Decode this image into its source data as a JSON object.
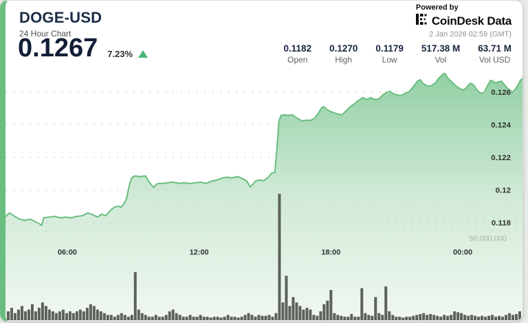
{
  "card": {
    "title": "DOGE-USD",
    "subtitle": "24 Hour Chart",
    "price": "0.1267",
    "change": "7.23%",
    "change_direction": "up"
  },
  "powered_by": {
    "label": "Powered by",
    "brand": "CoinDesk Data",
    "timestamp": "2 Jan 2026 02:59 (GMT)"
  },
  "stats": [
    {
      "value": "0.1182",
      "label": "Open"
    },
    {
      "value": "0.1270",
      "label": "High"
    },
    {
      "value": "0.1179",
      "label": "Low"
    },
    {
      "value": "517.38 M",
      "label": "Vol"
    },
    {
      "value": "63.71 M",
      "label": "Vol USD"
    }
  ],
  "colors": {
    "accent_stripe": "#6abe7f",
    "line": "#68bd7e",
    "area_top": "#8ccd9e",
    "area_mid": "#cfe9d6",
    "area_bottom": "#f1f8f1",
    "volume_bar": "#545a52",
    "up": "#4db378",
    "grid_dot": "#c9cdc9",
    "tick_text": "#2e332e",
    "time_text": "#30343a",
    "volume_axis_text": "#a9b2a9",
    "page_bg": "#e9ebe9",
    "card_bg": "#ffffff"
  },
  "chart_data": {
    "type": "area",
    "title": "DOGE-USD 24 Hour Chart",
    "x_axis": {
      "ticks": [
        {
          "label": "06:00",
          "t": 0.1195
        },
        {
          "label": "12:00",
          "t": 0.3745
        },
        {
          "label": "18:00",
          "t": 0.6295
        },
        {
          "label": "00:00",
          "t": 0.8845
        }
      ]
    },
    "price_axis": {
      "side": "right",
      "range": [
        0.11201,
        0.12739
      ],
      "ticks": [
        {
          "label": "0.126",
          "value": 0.126
        },
        {
          "label": "0.124",
          "value": 0.124
        },
        {
          "label": "0.122",
          "value": 0.122
        },
        {
          "label": "0.12",
          "value": 0.12
        },
        {
          "label": "0.118",
          "value": 0.118
        }
      ]
    },
    "volume_axis": {
      "gridline_label": "50,000,000",
      "gridline_value": 50000000,
      "range": [
        0,
        140800000
      ]
    },
    "price_series": {
      "name": "DOGE-USD price",
      "unit": "USD",
      "points": [
        [
          0.0,
          0.11838
        ],
        [
          0.008,
          0.11859
        ],
        [
          0.016,
          0.11842
        ],
        [
          0.027,
          0.11821
        ],
        [
          0.037,
          0.11813
        ],
        [
          0.048,
          0.11821
        ],
        [
          0.058,
          0.11804
        ],
        [
          0.066,
          0.11792
        ],
        [
          0.07,
          0.11783
        ],
        [
          0.074,
          0.11829
        ],
        [
          0.085,
          0.11834
        ],
        [
          0.096,
          0.11838
        ],
        [
          0.106,
          0.11829
        ],
        [
          0.117,
          0.11834
        ],
        [
          0.127,
          0.11829
        ],
        [
          0.138,
          0.11838
        ],
        [
          0.149,
          0.11842
        ],
        [
          0.159,
          0.11859
        ],
        [
          0.17,
          0.11846
        ],
        [
          0.178,
          0.11834
        ],
        [
          0.186,
          0.11851
        ],
        [
          0.194,
          0.11842
        ],
        [
          0.202,
          0.11872
        ],
        [
          0.21,
          0.11893
        ],
        [
          0.218,
          0.11901
        ],
        [
          0.223,
          0.11893
        ],
        [
          0.228,
          0.11909
        ],
        [
          0.234,
          0.11947
        ],
        [
          0.239,
          0.12023
        ],
        [
          0.244,
          0.12074
        ],
        [
          0.25,
          0.12086
        ],
        [
          0.26,
          0.12082
        ],
        [
          0.271,
          0.12086
        ],
        [
          0.276,
          0.12057
        ],
        [
          0.282,
          0.12032
        ],
        [
          0.287,
          0.12015
        ],
        [
          0.292,
          0.12036
        ],
        [
          0.297,
          0.1204
        ],
        [
          0.303,
          0.1204
        ],
        [
          0.313,
          0.12044
        ],
        [
          0.324,
          0.12048
        ],
        [
          0.335,
          0.1204
        ],
        [
          0.345,
          0.12044
        ],
        [
          0.356,
          0.1204
        ],
        [
          0.367,
          0.12044
        ],
        [
          0.377,
          0.12048
        ],
        [
          0.388,
          0.1204
        ],
        [
          0.398,
          0.12053
        ],
        [
          0.409,
          0.12061
        ],
        [
          0.42,
          0.12074
        ],
        [
          0.428,
          0.12078
        ],
        [
          0.438,
          0.12074
        ],
        [
          0.449,
          0.12082
        ],
        [
          0.459,
          0.12069
        ],
        [
          0.467,
          0.12053
        ],
        [
          0.473,
          0.12019
        ],
        [
          0.478,
          0.12032
        ],
        [
          0.483,
          0.12053
        ],
        [
          0.491,
          0.12061
        ],
        [
          0.499,
          0.12057
        ],
        [
          0.507,
          0.12074
        ],
        [
          0.515,
          0.12103
        ],
        [
          0.521,
          0.12107
        ],
        [
          0.525,
          0.12255
        ],
        [
          0.529,
          0.12423
        ],
        [
          0.533,
          0.12457
        ],
        [
          0.539,
          0.12461
        ],
        [
          0.547,
          0.12457
        ],
        [
          0.555,
          0.12461
        ],
        [
          0.56,
          0.12448
        ],
        [
          0.566,
          0.12436
        ],
        [
          0.574,
          0.12423
        ],
        [
          0.582,
          0.12427
        ],
        [
          0.59,
          0.12427
        ],
        [
          0.598,
          0.1244
        ],
        [
          0.606,
          0.12474
        ],
        [
          0.611,
          0.12503
        ],
        [
          0.616,
          0.12511
        ],
        [
          0.621,
          0.12495
        ],
        [
          0.628,
          0.12482
        ],
        [
          0.635,
          0.12474
        ],
        [
          0.643,
          0.12465
        ],
        [
          0.651,
          0.12461
        ],
        [
          0.659,
          0.12486
        ],
        [
          0.667,
          0.12511
        ],
        [
          0.675,
          0.12528
        ],
        [
          0.683,
          0.12549
        ],
        [
          0.691,
          0.12566
        ],
        [
          0.699,
          0.12554
        ],
        [
          0.707,
          0.12566
        ],
        [
          0.714,
          0.12554
        ],
        [
          0.722,
          0.12558
        ],
        [
          0.73,
          0.12583
        ],
        [
          0.738,
          0.126
        ],
        [
          0.744,
          0.12604
        ],
        [
          0.749,
          0.12592
        ],
        [
          0.757,
          0.12583
        ],
        [
          0.765,
          0.12579
        ],
        [
          0.773,
          0.12592
        ],
        [
          0.781,
          0.12604
        ],
        [
          0.789,
          0.12634
        ],
        [
          0.797,
          0.12667
        ],
        [
          0.802,
          0.12676
        ],
        [
          0.807,
          0.12655
        ],
        [
          0.815,
          0.12638
        ],
        [
          0.823,
          0.12638
        ],
        [
          0.831,
          0.12655
        ],
        [
          0.839,
          0.12688
        ],
        [
          0.846,
          0.12709
        ],
        [
          0.85,
          0.12714
        ],
        [
          0.855,
          0.12688
        ],
        [
          0.863,
          0.12663
        ],
        [
          0.871,
          0.12638
        ],
        [
          0.879,
          0.12621
        ],
        [
          0.884,
          0.12613
        ],
        [
          0.89,
          0.12621
        ],
        [
          0.895,
          0.12642
        ],
        [
          0.9,
          0.12655
        ],
        [
          0.906,
          0.12642
        ],
        [
          0.911,
          0.12617
        ],
        [
          0.916,
          0.126
        ],
        [
          0.922,
          0.12592
        ],
        [
          0.927,
          0.12604
        ],
        [
          0.932,
          0.12638
        ],
        [
          0.938,
          0.12672
        ],
        [
          0.943,
          0.12667
        ],
        [
          0.948,
          0.12655
        ],
        [
          0.953,
          0.12663
        ],
        [
          0.959,
          0.12667
        ],
        [
          0.964,
          0.1265
        ],
        [
          0.969,
          0.12629
        ],
        [
          0.975,
          0.12613
        ],
        [
          0.98,
          0.126
        ],
        [
          0.985,
          0.12613
        ],
        [
          0.991,
          0.12642
        ],
        [
          0.996,
          0.12672
        ],
        [
          1.0,
          0.12684
        ]
      ]
    },
    "volume_series": {
      "name": "Volume",
      "unit": "millions",
      "values_millions": [
        5,
        7,
        4,
        6,
        8,
        5,
        6,
        9,
        5,
        7,
        10,
        8,
        6,
        5,
        4,
        5,
        6,
        4,
        5,
        4,
        5,
        6,
        5,
        7,
        9,
        8,
        6,
        5,
        4,
        3,
        3,
        2,
        3,
        4,
        3,
        2,
        3,
        27,
        6,
        4,
        3,
        2,
        2,
        3,
        2,
        2,
        3,
        5,
        6,
        4,
        3,
        2,
        2,
        3,
        2,
        2,
        3,
        2,
        2,
        1.5,
        2,
        2,
        1.5,
        2,
        3,
        2,
        2,
        1.5,
        2,
        3,
        4,
        3,
        2,
        3,
        2.5,
        2.5,
        3,
        2,
        4,
        71,
        10,
        25,
        8,
        13,
        10,
        8,
        6,
        7,
        6,
        3,
        2.5,
        5,
        9,
        11,
        17,
        4,
        3,
        2.5,
        2,
        2,
        3.5,
        2,
        2,
        18,
        4,
        3,
        2.5,
        13,
        4,
        3,
        19,
        5,
        3,
        2,
        2,
        1.5,
        2,
        2,
        2.5,
        3,
        3.5,
        4,
        3,
        3.5,
        3,
        2.5,
        2,
        3,
        2.5,
        3,
        5,
        4.5,
        4,
        3,
        2.5,
        3,
        2.5,
        2,
        2.5,
        2,
        2.5,
        3,
        2,
        2.5,
        2,
        3,
        4,
        3,
        3.5,
        5
      ]
    }
  }
}
